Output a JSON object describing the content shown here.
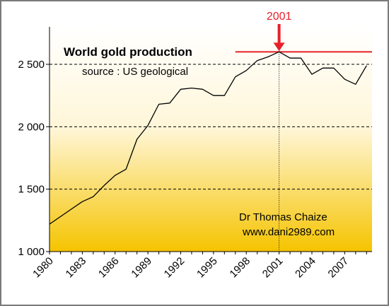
{
  "chart_data": {
    "type": "line",
    "title": "World gold production",
    "subtitle": "source : US geological",
    "credit_lines": [
      "Dr Thomas Chaize",
      "www.dani2989.com"
    ],
    "xlabel": "",
    "ylabel": "",
    "xlim": [
      1980,
      2009.5
    ],
    "ylim": [
      1000,
      2800
    ],
    "x_tick_labels": [
      "1980",
      "1983",
      "1986",
      "1989",
      "1992",
      "1995",
      "1998",
      "2001",
      "2004",
      "2007"
    ],
    "y_tick_labels": [
      "1 000",
      "1 500",
      "2 000",
      "2 500"
    ],
    "y_tick_values": [
      1000,
      1500,
      2000,
      2500
    ],
    "grid": "horizontal dashed",
    "series": [
      {
        "x": [
          1980,
          1981,
          1982,
          1983,
          1984,
          1985,
          1986,
          1987,
          1988,
          1989,
          1990,
          1991,
          1992,
          1993,
          1994,
          1995,
          1996,
          1997,
          1998,
          1999,
          2000,
          2001,
          2002,
          2003,
          2004,
          2005,
          2006,
          2007,
          2008,
          2009
        ],
        "values": [
          1220,
          1280,
          1340,
          1400,
          1440,
          1530,
          1610,
          1660,
          1900,
          2010,
          2180,
          2190,
          2300,
          2310,
          2300,
          2250,
          2250,
          2400,
          2450,
          2530,
          2560,
          2600,
          2550,
          2550,
          2420,
          2470,
          2470,
          2380,
          2340,
          2490
        ]
      }
    ],
    "annotation": {
      "label": "2001",
      "x": 2001,
      "y": 2600,
      "reference_line_value": 2600,
      "reference_line_from_x": 1997
    },
    "colors": {
      "line": "#000000",
      "annotation": "#e8202a",
      "background_top": "#ffffff",
      "background_bottom": "#f5c400"
    }
  }
}
